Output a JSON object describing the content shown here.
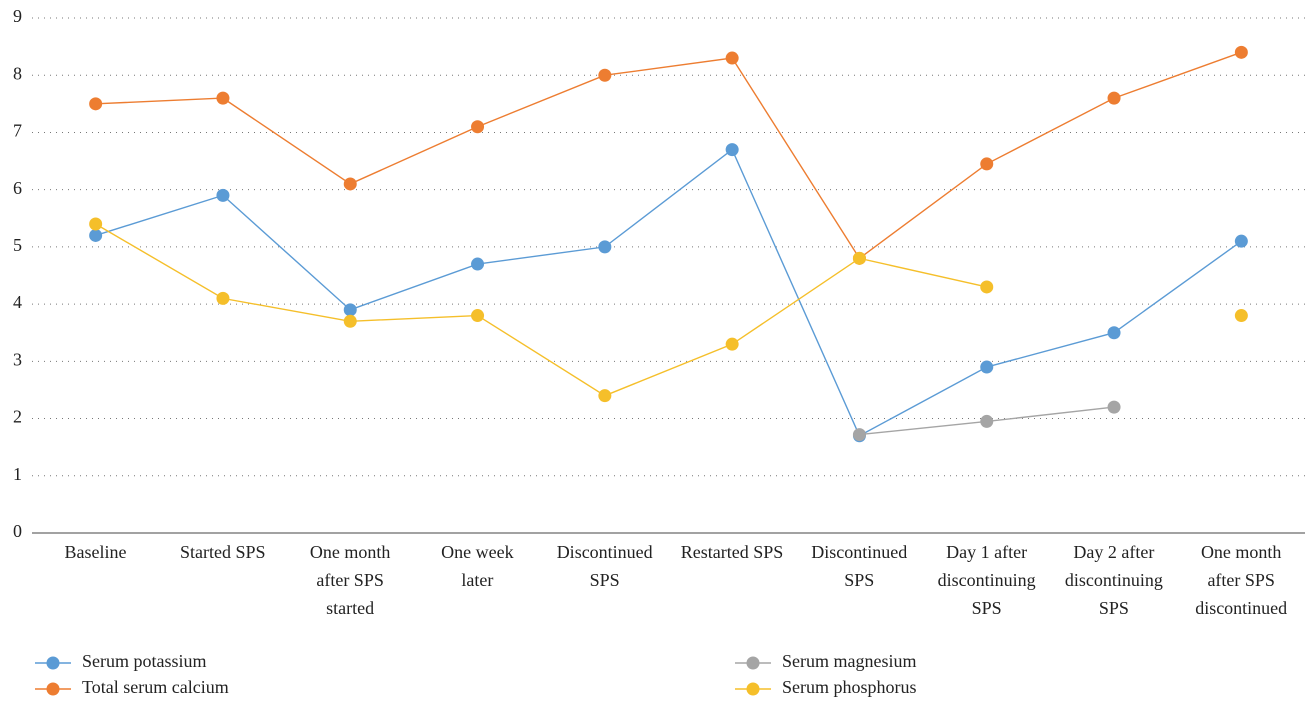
{
  "chart_data": {
    "type": "line",
    "categories": [
      "Baseline",
      "Started SPS",
      "One month\nafter SPS\nstarted",
      "One week\nlater",
      "Discontinued\nSPS",
      "Restarted SPS",
      "Discontinued\nSPS",
      "Day 1 after\ndiscontinuing\nSPS",
      "Day 2 after\ndiscontinuing\nSPS",
      "One month\nafter SPS\ndiscontinued"
    ],
    "series": [
      {
        "name": "Serum potassium",
        "color": "#5b9bd5",
        "values": [
          5.2,
          5.9,
          3.9,
          4.7,
          5.0,
          6.7,
          1.7,
          2.9,
          3.5,
          5.1
        ]
      },
      {
        "name": "Total serum calcium",
        "color": "#ed7d31",
        "values": [
          7.5,
          7.6,
          6.1,
          7.1,
          8.0,
          8.3,
          4.8,
          6.45,
          7.6,
          8.4
        ]
      },
      {
        "name": "Serum magnesium",
        "color": "#a5a5a5",
        "values": [
          null,
          null,
          null,
          null,
          null,
          null,
          1.72,
          1.95,
          2.2,
          null
        ]
      },
      {
        "name": "Serum phosphorus",
        "color": "#f5bf2a",
        "values": [
          5.4,
          4.1,
          3.7,
          3.8,
          2.4,
          3.3,
          4.8,
          4.3,
          null,
          3.8
        ]
      }
    ],
    "ylim": [
      0,
      9
    ],
    "yticks": [
      0,
      1,
      2,
      3,
      4,
      5,
      6,
      7,
      8,
      9
    ],
    "grid": true,
    "legend": "bottom"
  }
}
